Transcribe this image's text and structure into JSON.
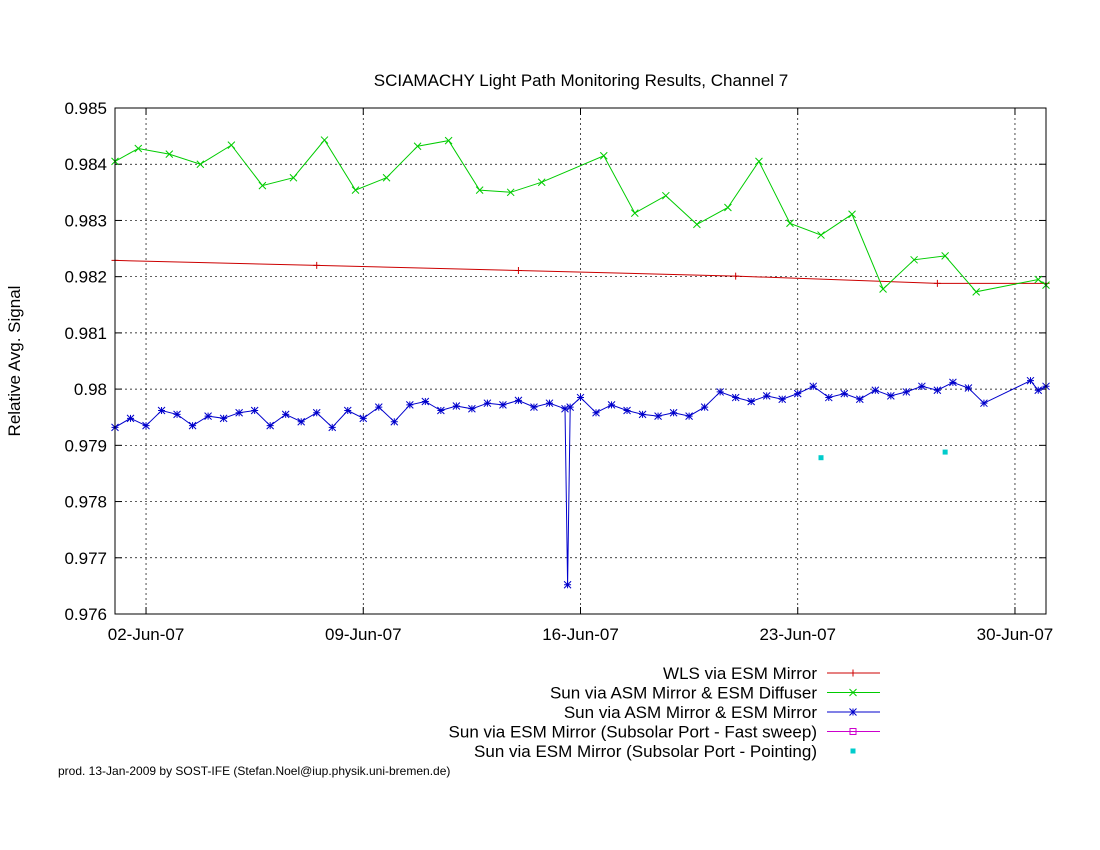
{
  "chart_data": {
    "type": "line",
    "title": "SCIAMACHY Light Path Monitoring Results, Channel 7",
    "xlabel": "",
    "ylabel": "Relative Avg. Signal",
    "x_axis_type": "date",
    "xlim": [
      "2007-06-01",
      "2007-07-01"
    ],
    "ylim": [
      0.976,
      0.985
    ],
    "x_ticks": [
      {
        "date": "2007-06-02",
        "label": "02-Jun-07"
      },
      {
        "date": "2007-06-09",
        "label": "09-Jun-07"
      },
      {
        "date": "2007-06-16",
        "label": "16-Jun-07"
      },
      {
        "date": "2007-06-23",
        "label": "23-Jun-07"
      },
      {
        "date": "2007-06-30",
        "label": "30-Jun-07"
      }
    ],
    "y_ticks": [
      "0.976",
      "0.977",
      "0.978",
      "0.979",
      "0.98",
      "0.981",
      "0.982",
      "0.983",
      "0.984",
      "0.985"
    ],
    "grid": true,
    "legend_position": "bottom-right, below plot",
    "series": [
      {
        "name": "WLS via ESM Mirror",
        "color": "#cc0000",
        "marker": "plus",
        "points": [
          {
            "x": "2007-06-01T00:00",
            "y": 0.98229
          },
          {
            "x": "2007-06-07T12:00",
            "y": 0.9822
          },
          {
            "x": "2007-06-14T00:00",
            "y": 0.98211
          },
          {
            "x": "2007-06-21T00:00",
            "y": 0.98201
          },
          {
            "x": "2007-06-27T12:00",
            "y": 0.98188
          },
          {
            "x": "2007-07-01T00:00",
            "y": 0.98188
          }
        ]
      },
      {
        "name": "Sun via ASM Mirror & ESM Diffuser",
        "color": "#00cc00",
        "marker": "x",
        "points": [
          {
            "x": "2007-06-01T00:00",
            "y": 0.98405
          },
          {
            "x": "2007-06-01T18:00",
            "y": 0.98428
          },
          {
            "x": "2007-06-02T18:00",
            "y": 0.98418
          },
          {
            "x": "2007-06-03T18:00",
            "y": 0.984
          },
          {
            "x": "2007-06-04T18:00",
            "y": 0.98434
          },
          {
            "x": "2007-06-05T18:00",
            "y": 0.98362
          },
          {
            "x": "2007-06-06T18:00",
            "y": 0.98376
          },
          {
            "x": "2007-06-07T18:00",
            "y": 0.98443
          },
          {
            "x": "2007-06-08T18:00",
            "y": 0.98354
          },
          {
            "x": "2007-06-09T18:00",
            "y": 0.98376
          },
          {
            "x": "2007-06-10T18:00",
            "y": 0.98432
          },
          {
            "x": "2007-06-11T18:00",
            "y": 0.98442
          },
          {
            "x": "2007-06-12T18:00",
            "y": 0.98354
          },
          {
            "x": "2007-06-13T18:00",
            "y": 0.9835
          },
          {
            "x": "2007-06-14T18:00",
            "y": 0.98368
          },
          {
            "x": "2007-06-16T18:00",
            "y": 0.98415
          },
          {
            "x": "2007-06-17T18:00",
            "y": 0.98313
          },
          {
            "x": "2007-06-18T18:00",
            "y": 0.98344
          },
          {
            "x": "2007-06-19T18:00",
            "y": 0.98293
          },
          {
            "x": "2007-06-20T18:00",
            "y": 0.98323
          },
          {
            "x": "2007-06-21T18:00",
            "y": 0.98405
          },
          {
            "x": "2007-06-22T18:00",
            "y": 0.98295
          },
          {
            "x": "2007-06-23T18:00",
            "y": 0.98274
          },
          {
            "x": "2007-06-24T18:00",
            "y": 0.98311
          },
          {
            "x": "2007-06-25T18:00",
            "y": 0.98178
          },
          {
            "x": "2007-06-26T18:00",
            "y": 0.9823
          },
          {
            "x": "2007-06-27T18:00",
            "y": 0.98237
          },
          {
            "x": "2007-06-28T18:00",
            "y": 0.98173
          },
          {
            "x": "2007-06-30T18:00",
            "y": 0.98195
          },
          {
            "x": "2007-07-01T00:00",
            "y": 0.98185
          }
        ]
      },
      {
        "name": "Sun via ASM Mirror & ESM Mirror",
        "color": "#0000cc",
        "marker": "star",
        "points": [
          {
            "x": "2007-06-01T00:00",
            "y": 0.97932
          },
          {
            "x": "2007-06-01T12:00",
            "y": 0.97948
          },
          {
            "x": "2007-06-02T00:00",
            "y": 0.97935
          },
          {
            "x": "2007-06-02T12:00",
            "y": 0.97962
          },
          {
            "x": "2007-06-03T00:00",
            "y": 0.97955
          },
          {
            "x": "2007-06-03T12:00",
            "y": 0.97935
          },
          {
            "x": "2007-06-04T00:00",
            "y": 0.97952
          },
          {
            "x": "2007-06-04T12:00",
            "y": 0.97948
          },
          {
            "x": "2007-06-05T00:00",
            "y": 0.97958
          },
          {
            "x": "2007-06-05T12:00",
            "y": 0.97962
          },
          {
            "x": "2007-06-06T00:00",
            "y": 0.97935
          },
          {
            "x": "2007-06-06T12:00",
            "y": 0.97955
          },
          {
            "x": "2007-06-07T00:00",
            "y": 0.97942
          },
          {
            "x": "2007-06-07T12:00",
            "y": 0.97958
          },
          {
            "x": "2007-06-08T00:00",
            "y": 0.97932
          },
          {
            "x": "2007-06-08T12:00",
            "y": 0.97962
          },
          {
            "x": "2007-06-09T00:00",
            "y": 0.97948
          },
          {
            "x": "2007-06-09T12:00",
            "y": 0.97968
          },
          {
            "x": "2007-06-10T00:00",
            "y": 0.97942
          },
          {
            "x": "2007-06-10T12:00",
            "y": 0.97972
          },
          {
            "x": "2007-06-11T00:00",
            "y": 0.97978
          },
          {
            "x": "2007-06-11T12:00",
            "y": 0.97962
          },
          {
            "x": "2007-06-12T00:00",
            "y": 0.9797
          },
          {
            "x": "2007-06-12T12:00",
            "y": 0.97965
          },
          {
            "x": "2007-06-13T00:00",
            "y": 0.97975
          },
          {
            "x": "2007-06-13T12:00",
            "y": 0.97972
          },
          {
            "x": "2007-06-14T00:00",
            "y": 0.9798
          },
          {
            "x": "2007-06-14T12:00",
            "y": 0.97968
          },
          {
            "x": "2007-06-15T00:00",
            "y": 0.97975
          },
          {
            "x": "2007-06-15T12:00",
            "y": 0.97965
          },
          {
            "x": "2007-06-15T14:00",
            "y": 0.97652
          },
          {
            "x": "2007-06-15T16:00",
            "y": 0.97968
          },
          {
            "x": "2007-06-16T00:00",
            "y": 0.97985
          },
          {
            "x": "2007-06-16T12:00",
            "y": 0.97958
          },
          {
            "x": "2007-06-17T00:00",
            "y": 0.97972
          },
          {
            "x": "2007-06-17T12:00",
            "y": 0.97962
          },
          {
            "x": "2007-06-18T00:00",
            "y": 0.97955
          },
          {
            "x": "2007-06-18T12:00",
            "y": 0.97952
          },
          {
            "x": "2007-06-19T00:00",
            "y": 0.97958
          },
          {
            "x": "2007-06-19T12:00",
            "y": 0.97952
          },
          {
            "x": "2007-06-20T00:00",
            "y": 0.97968
          },
          {
            "x": "2007-06-20T12:00",
            "y": 0.97995
          },
          {
            "x": "2007-06-21T00:00",
            "y": 0.97985
          },
          {
            "x": "2007-06-21T12:00",
            "y": 0.97978
          },
          {
            "x": "2007-06-22T00:00",
            "y": 0.97988
          },
          {
            "x": "2007-06-22T12:00",
            "y": 0.97982
          },
          {
            "x": "2007-06-23T00:00",
            "y": 0.97992
          },
          {
            "x": "2007-06-23T12:00",
            "y": 0.98005
          },
          {
            "x": "2007-06-24T00:00",
            "y": 0.97985
          },
          {
            "x": "2007-06-24T12:00",
            "y": 0.97992
          },
          {
            "x": "2007-06-25T00:00",
            "y": 0.97982
          },
          {
            "x": "2007-06-25T12:00",
            "y": 0.97998
          },
          {
            "x": "2007-06-26T00:00",
            "y": 0.97988
          },
          {
            "x": "2007-06-26T12:00",
            "y": 0.97995
          },
          {
            "x": "2007-06-27T00:00",
            "y": 0.98005
          },
          {
            "x": "2007-06-27T12:00",
            "y": 0.97998
          },
          {
            "x": "2007-06-28T00:00",
            "y": 0.98012
          },
          {
            "x": "2007-06-28T12:00",
            "y": 0.98002
          },
          {
            "x": "2007-06-29T00:00",
            "y": 0.97975
          },
          {
            "x": "2007-06-30T12:00",
            "y": 0.98015
          },
          {
            "x": "2007-06-30T18:00",
            "y": 0.97998
          },
          {
            "x": "2007-07-01T00:00",
            "y": 0.98005
          }
        ]
      },
      {
        "name": "Sun via ESM Mirror (Subsolar Port - Fast sweep)",
        "color": "#cc00cc",
        "marker": "square",
        "points": []
      },
      {
        "name": "Sun via ESM Mirror (Subsolar Port - Pointing)",
        "color": "#00cccc",
        "marker": "dot",
        "points": [
          {
            "x": "2007-06-23T18:00",
            "y": 0.97878
          },
          {
            "x": "2007-06-27T18:00",
            "y": 0.97888
          }
        ]
      }
    ]
  },
  "footer": {
    "credit": "prod. 13-Jan-2009 by SOST-IFE (Stefan.Noel@iup.physik.uni-bremen.de)"
  }
}
